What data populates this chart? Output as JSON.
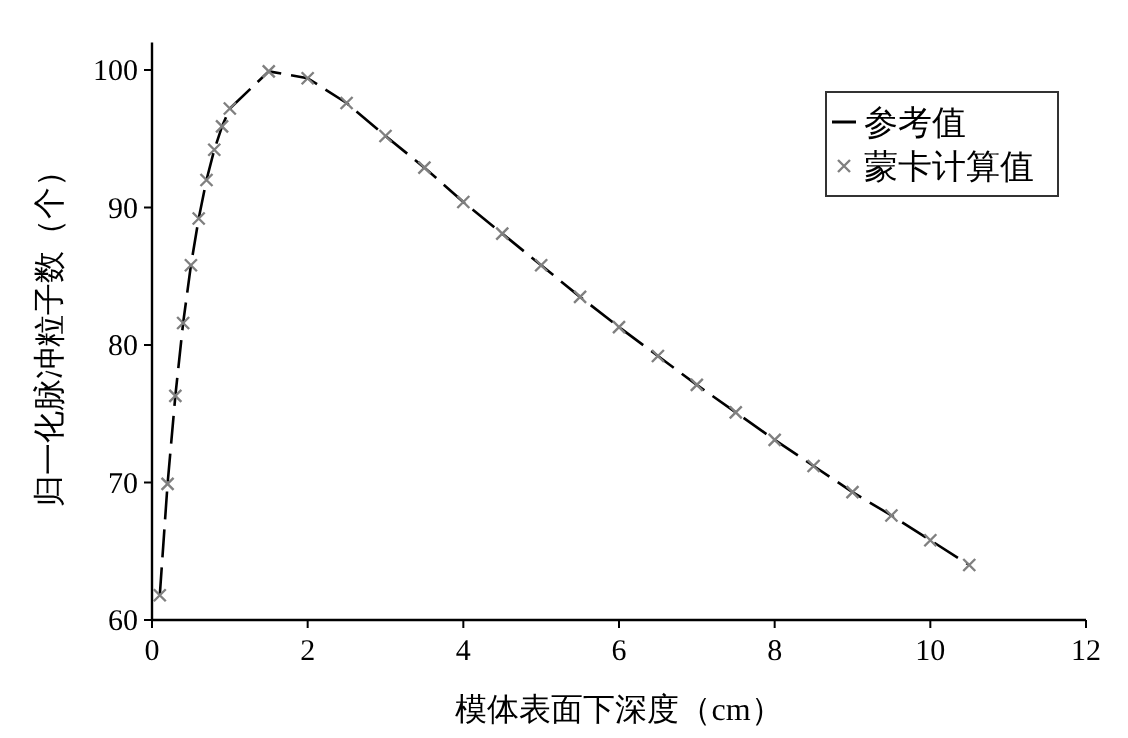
{
  "chart_data": {
    "type": "line",
    "xlabel": "模体表面下深度（cm）",
    "ylabel": "归一化脉冲粒子数（个）",
    "x": [
      0.1,
      0.2,
      0.3,
      0.4,
      0.5,
      0.6,
      0.7,
      0.8,
      0.9,
      1.0,
      1.5,
      2.0,
      2.5,
      3.0,
      3.5,
      4.0,
      4.5,
      5.0,
      5.5,
      6.0,
      6.5,
      7.0,
      7.5,
      8.0,
      8.5,
      9.0,
      9.5,
      10.0,
      10.5
    ],
    "series": [
      {
        "name": "参考值",
        "type": "line",
        "color": "#000000",
        "line_style": "dashed",
        "values": [
          61.8,
          69.9,
          76.3,
          81.6,
          85.8,
          89.2,
          92.0,
          94.2,
          95.9,
          97.2,
          99.9,
          99.4,
          97.6,
          95.2,
          92.9,
          90.4,
          88.1,
          85.8,
          83.5,
          81.3,
          79.2,
          77.1,
          75.1,
          73.1,
          71.2,
          69.3,
          67.6,
          65.8,
          64.0
        ]
      },
      {
        "name": "蒙卡计算值",
        "type": "scatter",
        "color": "#808080",
        "marker": "cross",
        "values": [
          61.8,
          69.9,
          76.3,
          81.6,
          85.8,
          89.2,
          92.0,
          94.2,
          95.9,
          97.2,
          99.9,
          99.4,
          97.6,
          95.2,
          92.9,
          90.4,
          88.1,
          85.8,
          83.5,
          81.3,
          79.2,
          77.1,
          75.1,
          73.1,
          71.2,
          69.3,
          67.6,
          65.8,
          64.0
        ]
      }
    ],
    "xlim": [
      0,
      12
    ],
    "xticks": [
      0,
      2,
      4,
      6,
      8,
      10,
      12
    ],
    "ylim": [
      60,
      102
    ],
    "yticks": [
      60,
      70,
      80,
      90,
      100
    ],
    "grid": false,
    "legend": "top right"
  }
}
